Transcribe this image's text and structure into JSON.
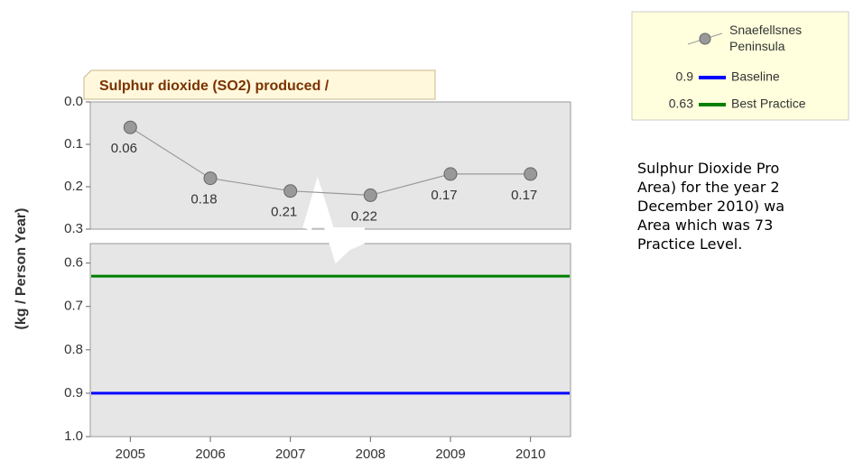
{
  "chart_data": {
    "type": "line",
    "title": "Sulphur dioxide (SO2) produced /",
    "y_label": "(kg / Person Year)",
    "categories": [
      "2005",
      "2006",
      "2007",
      "2008",
      "2009",
      "2010"
    ],
    "series": [
      {
        "name": "Snaefellsnes Peninsula",
        "color": "#999999",
        "values": [
          0.06,
          0.18,
          0.21,
          0.22,
          0.17,
          0.17
        ]
      }
    ],
    "reference_lines": [
      {
        "name": "Baseline",
        "value": 0.9,
        "color": "#0000ff"
      },
      {
        "name": "Best Practice",
        "value": 0.63,
        "color": "#008000"
      }
    ],
    "inverted": true,
    "panels": [
      {
        "ylim": [
          0,
          0.3
        ],
        "yticks": [
          {
            "value": 0,
            "label": "0.0"
          },
          0.1,
          0.2,
          0.3
        ]
      },
      {
        "ylim": [
          0.555,
          1.0
        ],
        "yticks": [
          0.6,
          0.7,
          0.8,
          0.9,
          {
            "value": 1,
            "label": "1.0"
          }
        ]
      }
    ]
  },
  "description": [
    "Sulphur Dioxide Pro",
    "Area) for the year 2",
    "December 2010) wa",
    "Area which was 73",
    "Practice Level."
  ]
}
